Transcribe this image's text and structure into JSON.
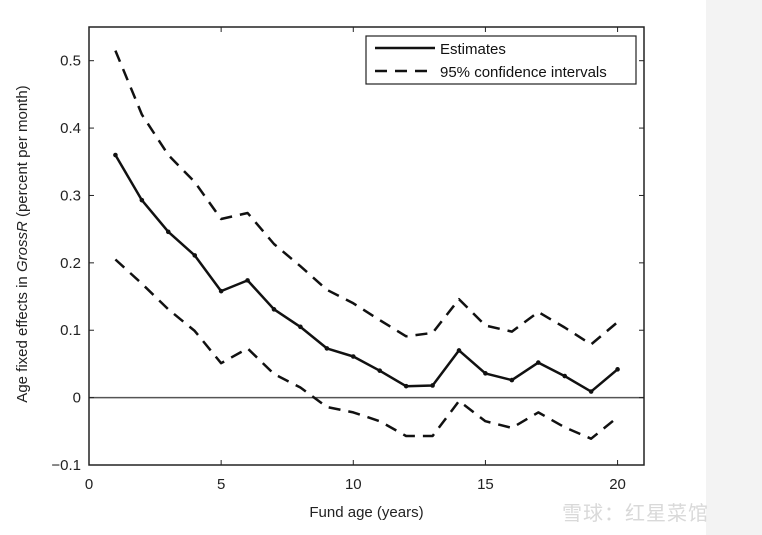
{
  "chart_data": {
    "type": "line",
    "title": "",
    "xlabel": "Fund age (years)",
    "ylabel_prefix": "Age fixed effects in ",
    "ylabel_italic": "GrossR",
    "ylabel_suffix": " (percent per month)",
    "xlim": [
      0,
      21
    ],
    "ylim": [
      -0.1,
      0.55
    ],
    "xticks": [
      0,
      5,
      10,
      15,
      20
    ],
    "yticks": [
      -0.1,
      0,
      0.1,
      0.2,
      0.3,
      0.4,
      0.5
    ],
    "ytick_labels": [
      "−0.1",
      "0",
      "0.1",
      "0.2",
      "0.3",
      "0.4",
      "0.5"
    ],
    "grid": false,
    "legend_position": "upper right",
    "reference_line": {
      "y": 0,
      "color": "#555555"
    },
    "x": [
      1,
      2,
      3,
      4,
      5,
      6,
      7,
      8,
      9,
      10,
      11,
      12,
      13,
      14,
      15,
      16,
      17,
      18,
      19,
      20
    ],
    "series": [
      {
        "name": "Estimates",
        "style": "solid",
        "markers": true,
        "values": [
          0.36,
          0.293,
          0.246,
          0.211,
          0.158,
          0.174,
          0.131,
          0.105,
          0.073,
          0.061,
          0.04,
          0.017,
          0.018,
          0.07,
          0.036,
          0.026,
          0.052,
          0.032,
          0.009,
          0.042
        ]
      },
      {
        "name": "95% confidence intervals",
        "style": "dashed",
        "part": "upper",
        "values": [
          0.515,
          0.42,
          0.36,
          0.32,
          0.265,
          0.274,
          0.228,
          0.195,
          0.16,
          0.14,
          0.115,
          0.091,
          0.096,
          0.146,
          0.107,
          0.098,
          0.127,
          0.104,
          0.079,
          0.112
        ]
      },
      {
        "name": "95% confidence intervals",
        "style": "dashed",
        "part": "lower",
        "values": [
          0.205,
          0.169,
          0.131,
          0.099,
          0.051,
          0.073,
          0.035,
          0.015,
          -0.014,
          -0.022,
          -0.035,
          -0.057,
          -0.057,
          -0.005,
          -0.035,
          -0.045,
          -0.022,
          -0.044,
          -0.061,
          -0.029
        ]
      }
    ]
  },
  "legend": {
    "items": [
      {
        "label": "Estimates",
        "style": "solid"
      },
      {
        "label": "95% confidence intervals",
        "style": "dashed"
      }
    ]
  },
  "watermark": {
    "text": "雪球：红星菜馆"
  },
  "colors": {
    "line": "#111111",
    "axis": "#222222",
    "zero_line": "#555555",
    "right_band": "#f3f3f3"
  }
}
